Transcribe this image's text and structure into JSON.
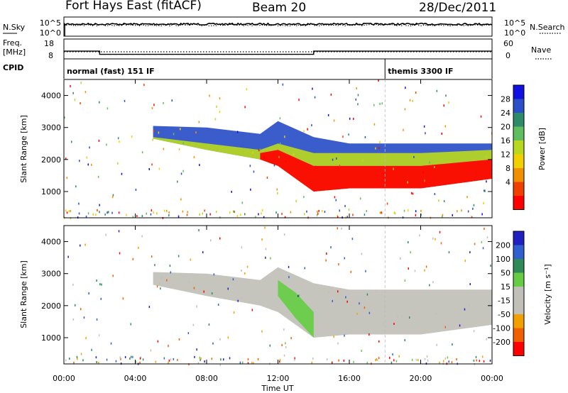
{
  "header": {
    "station": "Fort Hays East (fitACF)",
    "beam": "Beam 20",
    "date": "28/Dec/2011"
  },
  "side_labels": {
    "nsky": "N.Sky",
    "freq_line1": "Freq.",
    "freq_line2": "[MHz]",
    "cpid": "CPID",
    "nsearch": "N.Search",
    "nave": "Nave"
  },
  "colors": {
    "power": [
      "#1010e0",
      "#2a4fc8",
      "#2e8b6a",
      "#5fbf5f",
      "#b8d820",
      "#f0d000",
      "#f09000",
      "#f04000",
      "#ff0000"
    ],
    "velocity": [
      "#2020c0",
      "#3060d0",
      "#2e8b57",
      "#66cc44",
      "#c0c0b8",
      "#c0c0b8",
      "#f0a000",
      "#f06000",
      "#ff0000"
    ],
    "noise_line": "#000000"
  },
  "chart_data": [
    {
      "type": "line",
      "name": "noise",
      "yscale": "log",
      "left_ticks": [
        "10^5",
        "10^0"
      ],
      "right_ticks": [
        "10^5",
        "10^0"
      ],
      "series": [
        {
          "name": "N.Sky",
          "style": "solid",
          "x_hours": [
            0,
            24
          ],
          "level": "10^4"
        },
        {
          "name": "N.Search",
          "style": "dotted",
          "x_hours": [
            0,
            24
          ],
          "level": "10^4"
        }
      ]
    },
    {
      "type": "line",
      "name": "frequency",
      "left_ticks": [
        "18",
        "8"
      ],
      "right_ticks": [
        "60",
        "0"
      ],
      "series": [
        {
          "name": "Freq.",
          "units": "MHz",
          "style": "solid",
          "steps": [
            {
              "x": [
                0.0,
                2.0
              ],
              "y": 13.5
            },
            {
              "x": [
                2.0,
                14.0
              ],
              "y": 11.0
            },
            {
              "x": [
                14.0,
                24.0
              ],
              "y": 13.5
            }
          ]
        },
        {
          "name": "Nave",
          "style": "dotted",
          "steps": [
            {
              "x": [
                0.0,
                24.0
              ],
              "y": 10
            }
          ]
        }
      ]
    },
    {
      "type": "table",
      "name": "cpid",
      "entries": [
        {
          "start_hour": 0.0,
          "label": "normal (fast) 151 IF"
        },
        {
          "start_hour": 18.0,
          "label": "themis 3300 IF"
        }
      ]
    },
    {
      "type": "heatmap",
      "name": "power",
      "ylabel": "Slant Range [km]",
      "yticks": [
        1000,
        2000,
        3000,
        4000
      ],
      "ylim": [
        180,
        4500
      ],
      "colorbar": {
        "label": "Power [dB]",
        "ticks": [
          "28",
          "24",
          "20",
          "16",
          "12",
          "8",
          "4"
        ]
      },
      "bands": [
        {
          "x": [
            5.0,
            8.0,
            11.0,
            12.0,
            14.0,
            16.0,
            20.0,
            24.0
          ],
          "top": [
            3050,
            3000,
            2800,
            3200,
            2700,
            2500,
            2500,
            2500
          ],
          "bottom": [
            2650,
            2300,
            2000,
            1800,
            1000,
            1100,
            1100,
            1400
          ],
          "level": 1
        },
        {
          "x": [
            5.0,
            8.0,
            11.0,
            12.0,
            14.0,
            16.0,
            20.0,
            24.0
          ],
          "top": [
            2700,
            2500,
            2300,
            2500,
            2200,
            2200,
            2200,
            2300
          ],
          "bottom": [
            2650,
            2300,
            2000,
            1800,
            1000,
            1100,
            1100,
            1400
          ],
          "level": 4
        },
        {
          "x": [
            11.0,
            12.0,
            14.0,
            16.0,
            20.0,
            24.0
          ],
          "top": [
            2200,
            2300,
            1800,
            1800,
            1800,
            2000
          ],
          "bottom": [
            2000,
            1800,
            1000,
            1100,
            1100,
            1400
          ],
          "level": 8
        }
      ]
    },
    {
      "type": "heatmap",
      "name": "velocity",
      "ylabel": "Slant Range [km]",
      "yticks": [
        1000,
        2000,
        3000,
        4000
      ],
      "ylim": [
        180,
        4500
      ],
      "colorbar": {
        "label": "Velocity [m s⁻¹]",
        "ticks": [
          "200",
          "100",
          "50",
          "15",
          "-15",
          "-50",
          "-100",
          "-200"
        ]
      },
      "bands": [
        {
          "x": [
            5.0,
            8.0,
            11.0,
            12.0,
            14.0,
            16.0,
            20.0,
            24.0
          ],
          "top": [
            3050,
            3000,
            2800,
            3200,
            2700,
            2500,
            2500,
            2500
          ],
          "bottom": [
            2650,
            2300,
            2000,
            1800,
            1000,
            1100,
            1100,
            1400
          ],
          "level": 4
        },
        {
          "x": [
            12.0,
            13.0,
            14.0
          ],
          "top": [
            2800,
            2400,
            1800
          ],
          "bottom": [
            2300,
            1600,
            1000
          ],
          "level": 3
        }
      ]
    }
  ],
  "x_axis": {
    "label": "Time UT",
    "ticks": [
      "00:00",
      "04:00",
      "08:00",
      "12:00",
      "16:00",
      "20:00",
      "00:00"
    ],
    "tick_hours": [
      0,
      4,
      8,
      12,
      16,
      20,
      24
    ]
  }
}
